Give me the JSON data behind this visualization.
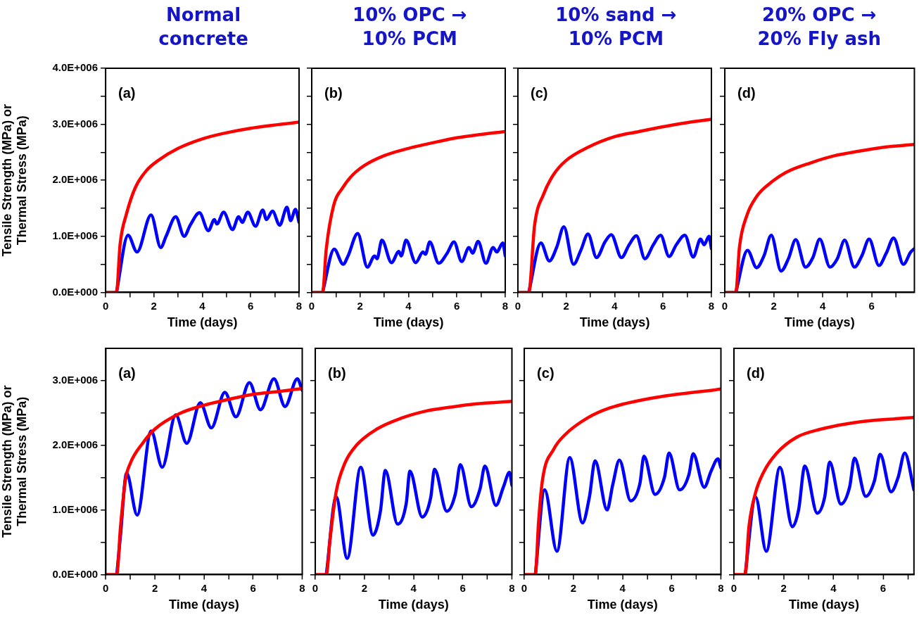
{
  "chart_data": [
    {
      "type": "line",
      "title": "Normal concrete",
      "xlabel": "Time (days)",
      "ylabel": "Tensile Strength (MPa) or Thermal Stress (MPa)",
      "annotations": [
        "(a)"
      ],
      "xlim": [
        0,
        8
      ],
      "xticks": [
        0,
        {
          "value": 1,
          "label": null
        },
        2,
        {
          "value": 3,
          "label": null
        },
        4,
        {
          "value": 5,
          "label": null
        },
        6,
        {
          "value": 7,
          "label": null
        },
        8
      ],
      "ylim": [
        0,
        4000000
      ],
      "yticks": [
        {
          "value": 0,
          "label": "0.0E+000"
        },
        {
          "value": 500000,
          "label": null
        },
        {
          "value": 1000000,
          "label": "1.0E+006"
        },
        {
          "value": 1500000,
          "label": null
        },
        {
          "value": 2000000,
          "label": "2.0E+006"
        },
        {
          "value": 2500000,
          "label": null
        },
        {
          "value": 3000000,
          "label": "3.0E+006"
        },
        {
          "value": 3500000,
          "label": null
        },
        {
          "value": 4000000,
          "label": "4.0E+006"
        }
      ],
      "series": [
        {
          "color": "#ff0000",
          "x": [
            0,
            0.45,
            0.6,
            0.87,
            1.24,
            1.7,
            2.16,
            3,
            4,
            4.9,
            6,
            8
          ],
          "values": [
            0,
            0,
            860000,
            1410000,
            1880000,
            2180000,
            2350000,
            2570000,
            2740000,
            2840000,
            2930000,
            3040000
          ]
        },
        {
          "color": "#0000ff",
          "x": [
            0.45,
            0.93,
            1.3,
            1.88,
            2.28,
            2.5,
            2.9,
            3.25,
            3.5,
            3.88,
            4.25,
            4.5,
            4.6,
            4.88,
            5.25,
            5.5,
            5.65,
            5.88,
            6.2,
            6.5,
            6.65,
            6.9,
            7.2,
            7.5,
            7.65,
            7.85,
            8
          ],
          "values": [
            0,
            1020000,
            720000,
            1380000,
            800000,
            1000000,
            1350000,
            1000000,
            1200000,
            1420000,
            1100000,
            1300000,
            1220000,
            1430000,
            1120000,
            1350000,
            1250000,
            1430000,
            1180000,
            1470000,
            1300000,
            1450000,
            1200000,
            1520000,
            1280000,
            1480000,
            1250000
          ]
        }
      ]
    },
    {
      "type": "line",
      "title": "10% OPC → 10% PCM",
      "xlabel": "Time (days)",
      "annotations": [
        "(b)"
      ],
      "tick_labels": "x",
      "xlim": [
        0,
        8
      ],
      "xticks": [
        0,
        {
          "value": 1,
          "label": null
        },
        2,
        {
          "value": 3,
          "label": null
        },
        4,
        {
          "value": 5,
          "label": null
        },
        6,
        {
          "value": 7,
          "label": null
        },
        8
      ],
      "ylim": [
        0,
        4000000
      ],
      "yticks": [
        0,
        500000,
        1000000,
        1500000,
        2000000,
        2500000,
        3000000,
        3500000,
        4000000
      ],
      "series": [
        {
          "color": "#ff0000",
          "x": [
            0,
            0.45,
            0.6,
            0.9,
            1.3,
            1.7,
            2.2,
            3,
            4,
            5,
            6,
            7,
            8
          ],
          "values": [
            0,
            0,
            770000,
            1540000,
            1880000,
            2100000,
            2270000,
            2440000,
            2570000,
            2670000,
            2760000,
            2820000,
            2870000
          ]
        },
        {
          "color": "#0000ff",
          "x": [
            0.45,
            0.93,
            1.3,
            1.5,
            1.9,
            2.3,
            2.6,
            2.7,
            2.9,
            3.3,
            3.6,
            3.7,
            3.9,
            4.3,
            4.6,
            4.7,
            4.88,
            5.25,
            5.6,
            5.88,
            6.2,
            6.5,
            6.65,
            6.88,
            7.2,
            7.5,
            7.65,
            7.9,
            8
          ],
          "values": [
            0,
            770000,
            500000,
            650000,
            1050000,
            450000,
            650000,
            600000,
            930000,
            530000,
            730000,
            650000,
            930000,
            530000,
            720000,
            680000,
            900000,
            520000,
            700000,
            900000,
            550000,
            800000,
            700000,
            910000,
            520000,
            800000,
            720000,
            880000,
            650000
          ]
        }
      ]
    },
    {
      "type": "line",
      "title": "10% sand → 10% PCM",
      "xlabel": "Time (days)",
      "annotations": [
        "(c)"
      ],
      "tick_labels": "x",
      "xlim": [
        0,
        8
      ],
      "xticks": [
        0,
        {
          "value": 1,
          "label": null
        },
        2,
        {
          "value": 3,
          "label": null
        },
        4,
        {
          "value": 5,
          "label": null
        },
        6,
        {
          "value": 7,
          "label": null
        },
        8
      ],
      "ylim": [
        0,
        4000000
      ],
      "yticks": [
        0,
        500000,
        1000000,
        1500000,
        2000000,
        2500000,
        3000000,
        3500000,
        4000000
      ],
      "series": [
        {
          "color": "#ff0000",
          "x": [
            0,
            0.45,
            0.69,
            1.06,
            1.47,
            1.98,
            2.9,
            4,
            5,
            5.93,
            7,
            8
          ],
          "values": [
            0,
            0,
            1200000,
            1750000,
            2100000,
            2350000,
            2590000,
            2780000,
            2870000,
            2950000,
            3030000,
            3090000
          ]
        },
        {
          "color": "#0000ff",
          "x": [
            0.45,
            0.95,
            1.3,
            1.6,
            1.9,
            2.3,
            2.6,
            2.9,
            3.25,
            3.6,
            3.86,
            4.28,
            4.6,
            4.9,
            5.25,
            5.6,
            5.9,
            6.25,
            6.55,
            6.9,
            7.25,
            7.55,
            7.7,
            7.9,
            8
          ],
          "values": [
            0,
            880000,
            560000,
            800000,
            1170000,
            500000,
            750000,
            1040000,
            620000,
            900000,
            1030000,
            620000,
            850000,
            1010000,
            600000,
            850000,
            1020000,
            640000,
            850000,
            1020000,
            630000,
            950000,
            850000,
            1000000,
            780000
          ]
        }
      ]
    },
    {
      "type": "line",
      "title": "20% OPC → 20% Fly ash",
      "xlabel": "Time (days)",
      "annotations": [
        "(d)"
      ],
      "tick_labels": "x",
      "xlim": [
        0,
        7.75
      ],
      "xticks": [
        0,
        {
          "value": 1,
          "label": null
        },
        2,
        {
          "value": 3,
          "label": null
        },
        4,
        {
          "value": 5,
          "label": null
        },
        6,
        {
          "value": 7,
          "label": null
        }
      ],
      "ylim": [
        0,
        4000000
      ],
      "yticks": [
        0,
        500000,
        1000000,
        1500000,
        2000000,
        2500000,
        3000000,
        3500000,
        4000000
      ],
      "series": [
        {
          "color": "#ff0000",
          "x": [
            0,
            0.45,
            0.6,
            0.9,
            1.3,
            1.8,
            2.5,
            3.5,
            4.5,
            5.5,
            6.5,
            7.75
          ],
          "values": [
            0,
            0,
            810000,
            1370000,
            1710000,
            1930000,
            2140000,
            2310000,
            2440000,
            2520000,
            2590000,
            2640000
          ]
        },
        {
          "color": "#0000ff",
          "x": [
            0.45,
            0.93,
            1.3,
            1.6,
            1.9,
            2.3,
            2.6,
            2.9,
            3.3,
            3.6,
            3.88,
            4.3,
            4.6,
            4.9,
            5.3,
            5.6,
            5.9,
            6.3,
            6.6,
            6.9,
            7.3,
            7.6,
            7.75
          ],
          "values": [
            0,
            750000,
            440000,
            650000,
            1020000,
            380000,
            600000,
            940000,
            450000,
            620000,
            950000,
            450000,
            600000,
            930000,
            450000,
            650000,
            950000,
            480000,
            700000,
            970000,
            500000,
            720000,
            780000
          ]
        }
      ]
    },
    {
      "type": "line",
      "xlabel": "Time (days)",
      "ylabel": "Tensile Strength (MPa) or Thermal Stress (MPa)",
      "annotations": [
        "(a)"
      ],
      "xlim": [
        0,
        8
      ],
      "xticks": [
        0,
        {
          "value": 1,
          "label": null
        },
        2,
        {
          "value": 3,
          "label": null
        },
        4,
        {
          "value": 5,
          "label": null
        },
        6,
        {
          "value": 7,
          "label": null
        },
        8
      ],
      "ylim": [
        0,
        3500000
      ],
      "yticks": [
        {
          "value": 0,
          "label": "0.0E+000"
        },
        {
          "value": 500000,
          "label": null
        },
        {
          "value": 1000000,
          "label": "1.0E+006"
        },
        {
          "value": 1500000,
          "label": null
        },
        {
          "value": 2000000,
          "label": "2.0E+006"
        },
        {
          "value": 2500000,
          "label": null
        },
        {
          "value": 3000000,
          "label": "3.0E+006"
        }
      ],
      "series": [
        {
          "color": "#ff0000",
          "x": [
            0,
            0.45,
            0.6,
            0.8,
            1,
            1.5,
            2,
            3,
            4,
            5,
            6,
            7,
            8
          ],
          "values": [
            0,
            0,
            730000,
            1460000,
            1720000,
            2030000,
            2250000,
            2490000,
            2620000,
            2710000,
            2790000,
            2830000,
            2880000
          ]
        },
        {
          "color": "#0000ff",
          "x": [
            0.45,
            0.6,
            0.85,
            1.28,
            1.85,
            2.3,
            2.85,
            3.3,
            3.85,
            4.3,
            4.85,
            5.3,
            5.85,
            6.3,
            6.85,
            7.3,
            7.8,
            8
          ],
          "values": [
            0,
            600000,
            1570000,
            920000,
            2220000,
            1660000,
            2470000,
            2030000,
            2660000,
            2270000,
            2820000,
            2440000,
            2970000,
            2550000,
            3030000,
            2600000,
            3030000,
            2850000
          ]
        }
      ]
    },
    {
      "type": "line",
      "xlabel": "Time (days)",
      "annotations": [
        "(b)"
      ],
      "tick_labels": "x",
      "xlim": [
        0,
        8
      ],
      "xticks": [
        0,
        {
          "value": 1,
          "label": null
        },
        2,
        {
          "value": 3,
          "label": null
        },
        4,
        {
          "value": 5,
          "label": null
        },
        6,
        {
          "value": 7,
          "label": null
        },
        8
      ],
      "ylim": [
        0,
        3500000
      ],
      "yticks": [
        0,
        500000,
        1000000,
        1500000,
        2000000,
        2500000,
        3000000
      ],
      "series": [
        {
          "color": "#ff0000",
          "x": [
            0,
            0.45,
            0.6,
            0.85,
            1.2,
            1.7,
            2.5,
            3.5,
            4.5,
            5.5,
            6.5,
            8
          ],
          "values": [
            0,
            0,
            540000,
            1280000,
            1720000,
            2010000,
            2250000,
            2420000,
            2530000,
            2590000,
            2640000,
            2680000
          ]
        },
        {
          "color": "#0000ff",
          "x": [
            0.45,
            0.85,
            1.3,
            1.85,
            2.35,
            2.65,
            2.85,
            3.35,
            3.7,
            3.85,
            4.35,
            4.7,
            4.85,
            5.35,
            5.7,
            5.9,
            6.35,
            6.7,
            6.9,
            7.35,
            7.65,
            7.9,
            8
          ],
          "values": [
            0,
            1200000,
            250000,
            1660000,
            610000,
            980000,
            1610000,
            780000,
            1100000,
            1600000,
            890000,
            1200000,
            1630000,
            980000,
            1250000,
            1700000,
            1050000,
            1320000,
            1680000,
            1070000,
            1350000,
            1580000,
            1380000
          ]
        }
      ]
    },
    {
      "type": "line",
      "xlabel": "Time (days)",
      "annotations": [
        "(c)"
      ],
      "tick_labels": "x",
      "xlim": [
        0,
        8
      ],
      "xticks": [
        0,
        {
          "value": 1,
          "label": null
        },
        2,
        {
          "value": 3,
          "label": null
        },
        4,
        {
          "value": 5,
          "label": null
        },
        6,
        {
          "value": 7,
          "label": null
        },
        8
      ],
      "ylim": [
        0,
        3500000
      ],
      "yticks": [
        0,
        500000,
        1000000,
        1500000,
        2000000,
        2500000,
        3000000
      ],
      "series": [
        {
          "color": "#ff0000",
          "x": [
            0,
            0.45,
            0.58,
            0.74,
            1.2,
            1.65,
            2.56,
            3.5,
            5.19,
            8
          ],
          "values": [
            0,
            0,
            800000,
            1460000,
            1940000,
            2160000,
            2420000,
            2580000,
            2730000,
            2870000
          ]
        },
        {
          "color": "#0000ff",
          "x": [
            0.45,
            0.83,
            1.33,
            1.85,
            2.37,
            2.65,
            2.88,
            3.37,
            3.6,
            3.87,
            4.33,
            4.7,
            4.87,
            5.32,
            5.7,
            5.89,
            6.32,
            6.7,
            6.87,
            7.32,
            7.6,
            7.88,
            8
          ],
          "values": [
            0,
            1310000,
            360000,
            1810000,
            800000,
            1200000,
            1760000,
            1000000,
            1390000,
            1770000,
            1140000,
            1400000,
            1830000,
            1240000,
            1500000,
            1880000,
            1310000,
            1550000,
            1870000,
            1350000,
            1600000,
            1790000,
            1650000
          ]
        }
      ]
    },
    {
      "type": "line",
      "xlabel": "Time (days)",
      "annotations": [
        "(d)"
      ],
      "tick_labels": "x",
      "xlim": [
        0,
        7.24
      ],
      "xticks": [
        0,
        {
          "value": 1,
          "label": null
        },
        2,
        {
          "value": 3,
          "label": null
        },
        4,
        {
          "value": 5,
          "label": null
        },
        6,
        {
          "value": 7,
          "label": null
        }
      ],
      "ylim": [
        0,
        3500000
      ],
      "yticks": [
        0,
        500000,
        1000000,
        1500000,
        2000000,
        2500000,
        3000000
      ],
      "series": [
        {
          "color": "#ff0000",
          "x": [
            0,
            0.45,
            0.6,
            0.85,
            1.2,
            1.7,
            2.5,
            3.5,
            4.5,
            5.5,
            6.5,
            7.24
          ],
          "values": [
            0,
            0,
            730000,
            1240000,
            1590000,
            1870000,
            2120000,
            2250000,
            2330000,
            2380000,
            2410000,
            2430000
          ]
        },
        {
          "color": "#0000ff",
          "x": [
            0.45,
            0.87,
            1.3,
            1.85,
            2.35,
            2.6,
            2.85,
            3.35,
            3.65,
            3.85,
            4.3,
            4.65,
            4.85,
            5.3,
            5.65,
            5.88,
            6.32,
            6.6,
            6.87,
            7.24
          ],
          "values": [
            0,
            1200000,
            360000,
            1660000,
            740000,
            1000000,
            1680000,
            950000,
            1200000,
            1740000,
            1090000,
            1350000,
            1800000,
            1210000,
            1450000,
            1860000,
            1280000,
            1500000,
            1880000,
            1310000
          ]
        }
      ]
    }
  ]
}
